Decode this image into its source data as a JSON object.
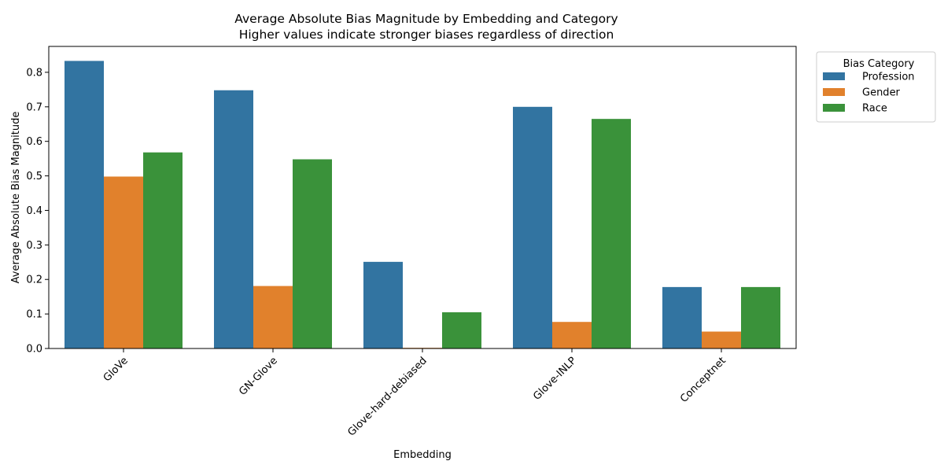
{
  "chart_data": {
    "type": "bar",
    "title": "Average Absolute Bias Magnitude by Embedding and Category",
    "subtitle": "Higher values indicate stronger biases regardless of direction",
    "xlabel": "Embedding",
    "ylabel": "Average Absolute Bias Magnitude",
    "categories": [
      "GloVe",
      "GN-Glove",
      "Glove-hard-debiased",
      "Glove-INLP",
      "Conceptnet"
    ],
    "series": [
      {
        "name": "Profession",
        "color": "#3274a1",
        "values": [
          0.833,
          0.748,
          0.251,
          0.7,
          0.178
        ]
      },
      {
        "name": "Gender",
        "color": "#e1812c",
        "values": [
          0.498,
          0.181,
          0.002,
          0.077,
          0.049
        ]
      },
      {
        "name": "Race",
        "color": "#3a923a",
        "values": [
          0.568,
          0.548,
          0.105,
          0.665,
          0.178
        ]
      }
    ],
    "ylim": [
      0,
      0.875
    ],
    "yticks": [
      "0.0",
      "0.1",
      "0.2",
      "0.3",
      "0.4",
      "0.5",
      "0.6",
      "0.7",
      "0.8"
    ],
    "ytick_values": [
      0,
      0.1,
      0.2,
      0.3,
      0.4,
      0.5,
      0.6,
      0.7,
      0.8
    ],
    "grid": false,
    "legend": {
      "title": "Bias Category",
      "placement": "outside-top-right"
    }
  }
}
